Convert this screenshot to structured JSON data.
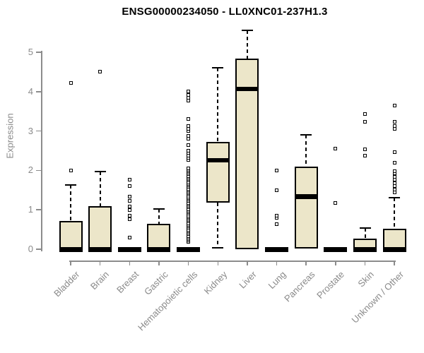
{
  "title": "ENSG00000234050 - LL0XNC01-237H1.3",
  "chart_data": {
    "type": "boxplot",
    "title": "ENSG00000234050 - LL0XNC01-237H1.3",
    "xlabel": "",
    "ylabel": "Expression",
    "ylim": [
      0,
      5.6
    ],
    "yticks": [
      0,
      1,
      2,
      3,
      4,
      5
    ],
    "grid": "off",
    "legend_position": "none",
    "box_fill_color": "#ece6c9",
    "box_border_color": "#000000",
    "axis_color": "#8c8c8c",
    "text_color": "#8a8a8a",
    "categories": [
      "Bladder",
      "Brain",
      "Breast",
      "Gastric",
      "Hematopoietic cells",
      "Kidney",
      "Liver",
      "Lung",
      "Pancreas",
      "Prostate",
      "Skin",
      "Unknown / Other"
    ],
    "series": [
      {
        "name": "Bladder",
        "whisker_low": 0,
        "q1": 0,
        "median": 0,
        "q3": 0.72,
        "whisker_high": 1.63,
        "outliers": [
          2.0,
          4.22
        ]
      },
      {
        "name": "Brain",
        "whisker_low": 0,
        "q1": 0,
        "median": 0,
        "q3": 1.1,
        "whisker_high": 1.97,
        "outliers": [
          4.5
        ]
      },
      {
        "name": "Breast",
        "whisker_low": 0,
        "q1": 0,
        "median": 0,
        "q3": 0,
        "whisker_high": 0,
        "outliers": [
          0.3,
          0.77,
          0.86,
          0.99,
          1.09,
          1.22,
          1.34,
          1.6,
          1.76
        ]
      },
      {
        "name": "Gastric",
        "whisker_low": 0,
        "q1": 0,
        "median": 0,
        "q3": 0.65,
        "whisker_high": 1.02,
        "outliers": []
      },
      {
        "name": "Hematopoietic cells",
        "whisker_low": 0,
        "q1": 0,
        "median": 0,
        "q3": 0,
        "whisker_high": 0,
        "outliers": [
          0.18,
          0.22,
          0.26,
          0.3,
          0.34,
          0.38,
          0.42,
          0.46,
          0.5,
          0.54,
          0.58,
          0.62,
          0.66,
          0.7,
          0.74,
          0.78,
          0.82,
          0.86,
          0.9,
          0.94,
          0.98,
          1.02,
          1.06,
          1.1,
          1.14,
          1.18,
          1.22,
          1.26,
          1.3,
          1.34,
          1.38,
          1.42,
          1.46,
          1.5,
          1.54,
          1.58,
          1.62,
          1.66,
          1.7,
          1.74,
          1.78,
          1.82,
          1.86,
          1.9,
          1.94,
          1.98,
          2.02,
          2.06,
          2.26,
          2.32,
          2.38,
          2.44,
          2.5,
          2.65,
          2.8,
          2.87,
          3.0,
          3.06,
          3.12,
          3.3,
          3.78,
          3.85,
          3.92,
          4.0
        ]
      },
      {
        "name": "Kidney",
        "whisker_low": 0.03,
        "q1": 1.18,
        "median": 2.26,
        "q3": 2.72,
        "whisker_high": 4.6,
        "outliers": []
      },
      {
        "name": "Liver",
        "whisker_low": 0,
        "q1": 0,
        "median": 4.07,
        "q3": 4.83,
        "whisker_high": 5.55,
        "outliers": []
      },
      {
        "name": "Lung",
        "whisker_low": 0,
        "q1": 0,
        "median": 0,
        "q3": 0,
        "whisker_high": 0,
        "outliers": [
          0.63,
          0.8,
          0.86,
          1.49,
          2.0
        ]
      },
      {
        "name": "Pancreas",
        "whisker_low": 0.02,
        "q1": 0.02,
        "median": 1.34,
        "q3": 2.1,
        "whisker_high": 2.9,
        "outliers": []
      },
      {
        "name": "Prostate",
        "whisker_low": 0,
        "q1": 0,
        "median": 0,
        "q3": 0,
        "whisker_high": 0,
        "outliers": [
          1.18,
          2.56
        ]
      },
      {
        "name": "Skin",
        "whisker_low": 0,
        "q1": 0,
        "median": 0,
        "q3": 0.27,
        "whisker_high": 0.54,
        "outliers": [
          2.38,
          2.53,
          3.23,
          3.44
        ]
      },
      {
        "name": "Unknown / Other",
        "whisker_low": 0,
        "q1": 0,
        "median": 0,
        "q3": 0.52,
        "whisker_high": 1.3,
        "outliers": [
          1.44,
          1.52,
          1.6,
          1.68,
          1.76,
          1.84,
          1.92,
          1.98,
          2.2,
          2.47,
          3.05,
          3.12,
          3.24,
          3.65
        ]
      }
    ]
  }
}
